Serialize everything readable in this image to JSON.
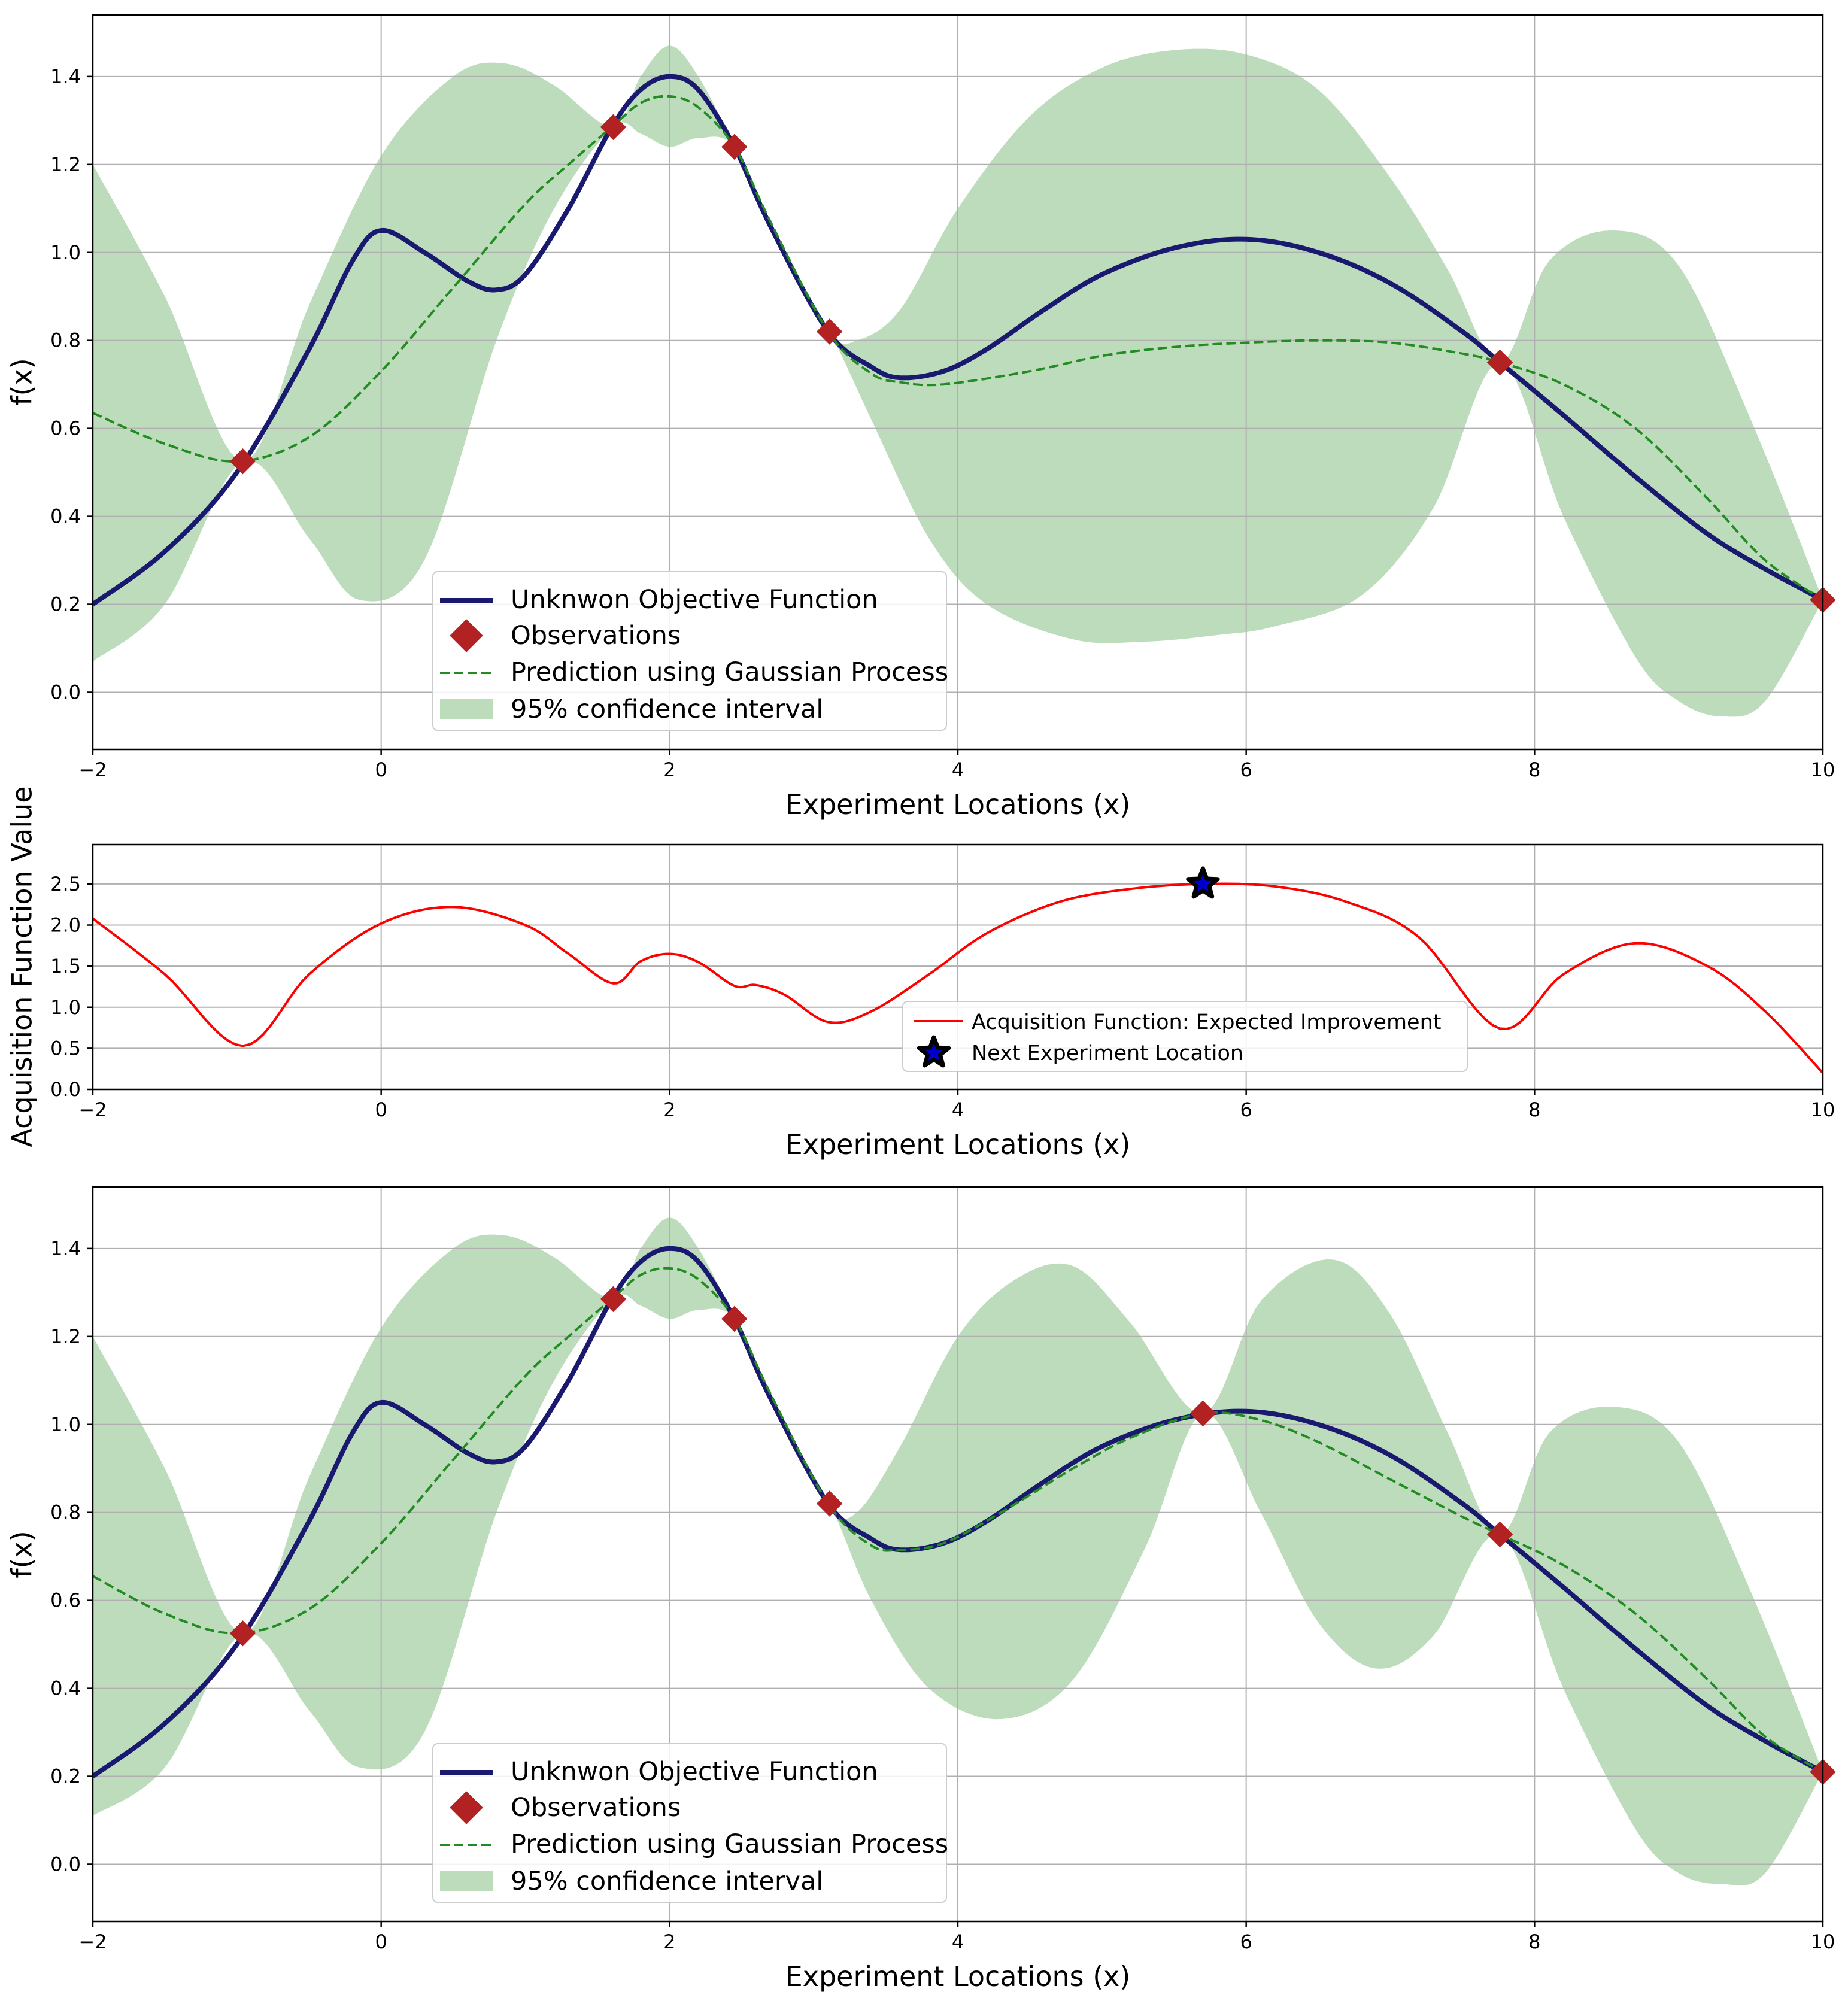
{
  "chart_data": [
    {
      "type": "line",
      "panel": "top",
      "xlabel": "Experiment Locations (x)",
      "ylabel": "f(x)",
      "xlim": [
        -2,
        10
      ],
      "ylim": [
        -0.13,
        1.54
      ],
      "xticks": [
        -2,
        0,
        2,
        4,
        6,
        8,
        10
      ],
      "xtick_labels": [
        "−2",
        "0",
        "2",
        "4",
        "6",
        "8",
        "10"
      ],
      "yticks": [
        0.0,
        0.2,
        0.4,
        0.6,
        0.8,
        1.0,
        1.2,
        1.4
      ],
      "ytick_labels": [
        "0.0",
        "0.2",
        "0.4",
        "0.6",
        "0.8",
        "1.0",
        "1.2",
        "1.4"
      ],
      "grid": true,
      "legend_position": "lower-center-left",
      "legend": {
        "objective": "Unknwon Objective Function",
        "observations": "Observations",
        "prediction": "Prediction using Gaussian Process",
        "ci": "95% confidence interval"
      },
      "colors": {
        "objective": "#191970",
        "observations": "#b22222",
        "prediction": "#228b22",
        "ci": "#bcdcbc"
      },
      "observations": {
        "x": [
          -0.96,
          1.61,
          2.45,
          3.11,
          7.76,
          10.0
        ],
        "y": [
          0.525,
          1.285,
          1.24,
          0.82,
          0.75,
          0.21
        ]
      },
      "objective": {
        "x": [
          -2,
          -1.5,
          -1,
          -0.5,
          -0.2,
          0,
          0.3,
          0.6,
          0.8,
          1.0,
          1.3,
          1.6,
          1.8,
          2.0,
          2.2,
          2.45,
          2.7,
          3.1,
          3.4,
          3.6,
          3.9,
          4.2,
          4.6,
          5.0,
          5.5,
          6.0,
          6.5,
          7.0,
          7.5,
          7.76,
          8.2,
          8.7,
          9.2,
          9.6,
          10.0
        ],
        "y": [
          0.2,
          0.32,
          0.5,
          0.78,
          0.98,
          1.05,
          1.0,
          0.935,
          0.915,
          0.95,
          1.1,
          1.285,
          1.37,
          1.4,
          1.37,
          1.24,
          1.06,
          0.82,
          0.74,
          0.715,
          0.73,
          0.78,
          0.87,
          0.95,
          1.01,
          1.03,
          1.0,
          0.93,
          0.82,
          0.75,
          0.63,
          0.49,
          0.36,
          0.28,
          0.21
        ]
      },
      "prediction": {
        "x": [
          -2,
          -1.5,
          -1,
          -0.5,
          0,
          0.5,
          1.0,
          1.3,
          1.6,
          1.8,
          2.0,
          2.2,
          2.45,
          2.7,
          3.1,
          3.4,
          3.6,
          3.9,
          4.5,
          5.0,
          5.5,
          6.0,
          6.5,
          7.0,
          7.5,
          7.76,
          8.2,
          8.7,
          9.2,
          9.6,
          10.0
        ],
        "y": [
          0.635,
          0.565,
          0.525,
          0.58,
          0.73,
          0.92,
          1.11,
          1.2,
          1.285,
          1.34,
          1.355,
          1.33,
          1.24,
          1.07,
          0.82,
          0.725,
          0.705,
          0.7,
          0.73,
          0.765,
          0.785,
          0.795,
          0.8,
          0.795,
          0.77,
          0.75,
          0.7,
          0.6,
          0.44,
          0.3,
          0.21
        ]
      },
      "ci_upper": {
        "x": [
          -2,
          -1.5,
          -0.96,
          -0.5,
          0,
          0.5,
          0.85,
          1.2,
          1.61,
          1.8,
          2.0,
          2.2,
          2.45,
          2.7,
          3.11,
          3.3,
          3.6,
          4.0,
          4.5,
          5.0,
          5.5,
          6.0,
          6.5,
          7.0,
          7.4,
          7.76,
          8.1,
          8.55,
          9.0,
          9.5,
          10.0
        ],
        "y": [
          1.2,
          0.9,
          0.525,
          0.88,
          1.22,
          1.4,
          1.43,
          1.38,
          1.285,
          1.4,
          1.47,
          1.4,
          1.24,
          1.05,
          0.82,
          0.8,
          0.87,
          1.1,
          1.31,
          1.42,
          1.46,
          1.45,
          1.37,
          1.17,
          0.96,
          0.75,
          0.98,
          1.05,
          0.97,
          0.62,
          0.21
        ]
      },
      "ci_lower": {
        "x": [
          -2,
          -1.5,
          -0.96,
          -0.5,
          -0.15,
          0.3,
          0.8,
          1.2,
          1.61,
          1.8,
          2.0,
          2.2,
          2.45,
          2.7,
          3.11,
          3.4,
          3.8,
          4.2,
          4.8,
          5.3,
          5.8,
          6.2,
          6.8,
          7.3,
          7.76,
          8.2,
          8.7,
          9.0,
          9.3,
          9.6,
          10.0
        ],
        "y": [
          0.07,
          0.2,
          0.525,
          0.35,
          0.21,
          0.3,
          0.8,
          1.1,
          1.285,
          1.27,
          1.24,
          1.26,
          1.24,
          1.05,
          0.82,
          0.62,
          0.35,
          0.2,
          0.12,
          0.115,
          0.13,
          0.15,
          0.22,
          0.42,
          0.75,
          0.4,
          0.08,
          -0.02,
          -0.055,
          -0.02,
          0.21
        ]
      }
    },
    {
      "type": "line",
      "panel": "middle",
      "xlabel": "Experiment Locations (x)",
      "ylabel": "Acquisition Function Value",
      "xlim": [
        -2,
        10
      ],
      "ylim": [
        0.0,
        2.98
      ],
      "xticks": [
        -2,
        0,
        2,
        4,
        6,
        8,
        10
      ],
      "xtick_labels": [
        "−2",
        "0",
        "2",
        "4",
        "6",
        "8",
        "10"
      ],
      "yticks": [
        0.0,
        0.5,
        1.0,
        1.5,
        2.0,
        2.5
      ],
      "ytick_labels": [
        "0.0",
        "0.5",
        "1.0",
        "1.5",
        "2.0",
        "2.5"
      ],
      "grid": true,
      "legend_position": "lower-center-right",
      "legend": {
        "ei": "Acquisition Function: Expected Improvement",
        "next": "Next Experiment Location"
      },
      "colors": {
        "ei": "#ff0000",
        "star_fill": "#0000cd",
        "star_edge": "#000000"
      },
      "ei": {
        "x": [
          -2,
          -1.5,
          -0.96,
          -0.5,
          0,
          0.5,
          1.0,
          1.3,
          1.61,
          1.8,
          2.0,
          2.2,
          2.45,
          2.6,
          2.8,
          3.1,
          3.4,
          3.8,
          4.2,
          4.7,
          5.2,
          5.7,
          6.2,
          6.7,
          7.2,
          7.76,
          8.2,
          8.7,
          9.2,
          9.6,
          10.0
        ],
        "y": [
          2.08,
          1.4,
          0.53,
          1.4,
          2.02,
          2.22,
          2.0,
          1.65,
          1.29,
          1.56,
          1.65,
          1.55,
          1.26,
          1.27,
          1.15,
          0.82,
          0.95,
          1.4,
          1.9,
          2.28,
          2.44,
          2.5,
          2.47,
          2.28,
          1.85,
          0.74,
          1.4,
          1.78,
          1.5,
          0.95,
          0.2
        ]
      },
      "next_point": {
        "x": 5.7,
        "y": 2.5
      }
    },
    {
      "type": "line",
      "panel": "bottom",
      "xlabel": "Experiment Locations (x)",
      "ylabel": "f(x)",
      "xlim": [
        -2,
        10
      ],
      "ylim": [
        -0.13,
        1.54
      ],
      "xticks": [
        -2,
        0,
        2,
        4,
        6,
        8,
        10
      ],
      "xtick_labels": [
        "−2",
        "0",
        "2",
        "4",
        "6",
        "8",
        "10"
      ],
      "yticks": [
        0.0,
        0.2,
        0.4,
        0.6,
        0.8,
        1.0,
        1.2,
        1.4
      ],
      "ytick_labels": [
        "0.0",
        "0.2",
        "0.4",
        "0.6",
        "0.8",
        "1.0",
        "1.2",
        "1.4"
      ],
      "grid": true,
      "legend_position": "lower-center-left",
      "legend": {
        "objective": "Unknwon Objective Function",
        "observations": "Observations",
        "prediction": "Prediction using Gaussian Process",
        "ci": "95% confidence interval"
      },
      "colors": {
        "objective": "#191970",
        "observations": "#b22222",
        "prediction": "#228b22",
        "ci": "#bcdcbc"
      },
      "observations": {
        "x": [
          -0.96,
          1.61,
          2.45,
          3.11,
          5.7,
          7.76,
          10.0
        ],
        "y": [
          0.525,
          1.285,
          1.24,
          0.82,
          1.025,
          0.75,
          0.21
        ]
      },
      "objective": {
        "x": [
          -2,
          -1.5,
          -1,
          -0.5,
          -0.2,
          0,
          0.3,
          0.6,
          0.8,
          1.0,
          1.3,
          1.6,
          1.8,
          2.0,
          2.2,
          2.45,
          2.7,
          3.1,
          3.4,
          3.6,
          3.9,
          4.2,
          4.6,
          5.0,
          5.5,
          6.0,
          6.5,
          7.0,
          7.5,
          7.76,
          8.2,
          8.7,
          9.2,
          9.6,
          10.0
        ],
        "y": [
          0.2,
          0.32,
          0.5,
          0.78,
          0.98,
          1.05,
          1.0,
          0.935,
          0.915,
          0.95,
          1.1,
          1.285,
          1.37,
          1.4,
          1.37,
          1.24,
          1.06,
          0.82,
          0.74,
          0.715,
          0.73,
          0.78,
          0.87,
          0.95,
          1.01,
          1.03,
          1.0,
          0.93,
          0.82,
          0.75,
          0.63,
          0.49,
          0.36,
          0.28,
          0.21
        ]
      },
      "prediction": {
        "x": [
          -2,
          -1.5,
          -1,
          -0.5,
          0,
          0.5,
          1.0,
          1.3,
          1.6,
          1.8,
          2.0,
          2.2,
          2.45,
          2.7,
          3.1,
          3.4,
          3.6,
          3.9,
          4.3,
          4.8,
          5.2,
          5.7,
          6.1,
          6.5,
          7.0,
          7.5,
          7.76,
          8.2,
          8.7,
          9.2,
          9.6,
          10.0
        ],
        "y": [
          0.655,
          0.57,
          0.525,
          0.58,
          0.73,
          0.92,
          1.11,
          1.2,
          1.285,
          1.34,
          1.355,
          1.33,
          1.24,
          1.07,
          0.82,
          0.725,
          0.715,
          0.73,
          0.8,
          0.9,
          0.97,
          1.025,
          1.01,
          0.96,
          0.875,
          0.79,
          0.75,
          0.68,
          0.57,
          0.42,
          0.29,
          0.21
        ]
      },
      "ci_upper": {
        "x": [
          -2,
          -1.5,
          -0.96,
          -0.5,
          0,
          0.5,
          0.85,
          1.2,
          1.61,
          1.8,
          2.0,
          2.2,
          2.45,
          2.7,
          3.11,
          3.3,
          3.6,
          4.0,
          4.4,
          4.8,
          5.2,
          5.7,
          6.1,
          6.6,
          7.0,
          7.4,
          7.76,
          8.1,
          8.55,
          9.0,
          9.5,
          10.0
        ],
        "y": [
          1.2,
          0.9,
          0.525,
          0.88,
          1.22,
          1.4,
          1.43,
          1.38,
          1.285,
          1.4,
          1.47,
          1.4,
          1.24,
          1.05,
          0.82,
          0.8,
          0.95,
          1.2,
          1.33,
          1.36,
          1.23,
          1.025,
          1.28,
          1.375,
          1.25,
          0.98,
          0.75,
          0.98,
          1.04,
          0.96,
          0.62,
          0.21
        ]
      },
      "ci_lower": {
        "x": [
          -2,
          -1.5,
          -0.96,
          -0.5,
          -0.15,
          0.3,
          0.8,
          1.2,
          1.61,
          1.8,
          2.0,
          2.2,
          2.45,
          2.7,
          3.11,
          3.4,
          3.8,
          4.3,
          4.8,
          5.3,
          5.7,
          6.1,
          6.5,
          6.9,
          7.3,
          7.76,
          8.2,
          8.7,
          9.0,
          9.3,
          9.6,
          10.0
        ],
        "y": [
          0.11,
          0.22,
          0.525,
          0.35,
          0.22,
          0.3,
          0.8,
          1.1,
          1.285,
          1.27,
          1.24,
          1.26,
          1.24,
          1.05,
          0.82,
          0.6,
          0.4,
          0.33,
          0.42,
          0.72,
          1.025,
          0.8,
          0.55,
          0.445,
          0.52,
          0.75,
          0.4,
          0.08,
          -0.02,
          -0.045,
          -0.02,
          0.21
        ]
      }
    }
  ]
}
